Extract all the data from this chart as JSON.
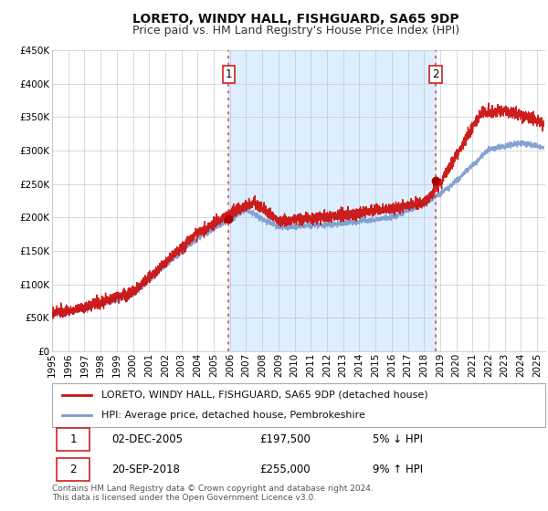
{
  "title": "LORETO, WINDY HALL, FISHGUARD, SA65 9DP",
  "subtitle": "Price paid vs. HM Land Registry's House Price Index (HPI)",
  "ylim": [
    0,
    450000
  ],
  "yticks": [
    0,
    50000,
    100000,
    150000,
    200000,
    250000,
    300000,
    350000,
    400000,
    450000
  ],
  "ytick_labels": [
    "£0",
    "£50K",
    "£100K",
    "£150K",
    "£200K",
    "£250K",
    "£300K",
    "£350K",
    "£400K",
    "£450K"
  ],
  "xlim_start": 1995.0,
  "xlim_end": 2025.5,
  "xticks": [
    1995,
    1996,
    1997,
    1998,
    1999,
    2000,
    2001,
    2002,
    2003,
    2004,
    2005,
    2006,
    2007,
    2008,
    2009,
    2010,
    2011,
    2012,
    2013,
    2014,
    2015,
    2016,
    2017,
    2018,
    2019,
    2020,
    2021,
    2022,
    2023,
    2024,
    2025
  ],
  "sale1_x": 2005.92,
  "sale1_y": 197500,
  "sale1_label": "1",
  "sale1_date": "02-DEC-2005",
  "sale1_price": "£197,500",
  "sale1_hpi": "5% ↓ HPI",
  "sale2_x": 2018.72,
  "sale2_y": 255000,
  "sale2_label": "2",
  "sale2_date": "20-SEP-2018",
  "sale2_price": "£255,000",
  "sale2_hpi": "9% ↑ HPI",
  "vline_color": "#d04040",
  "sale_dot_color": "#aa0000",
  "hpi_color": "#7799cc",
  "price_color": "#cc1111",
  "shade_color": "#ddeeff",
  "legend_label_price": "LORETO, WINDY HALL, FISHGUARD, SA65 9DP (detached house)",
  "legend_label_hpi": "HPI: Average price, detached house, Pembrokeshire",
  "footer": "Contains HM Land Registry data © Crown copyright and database right 2024.\nThis data is licensed under the Open Government Licence v3.0.",
  "title_fontsize": 10,
  "subtitle_fontsize": 9,
  "tick_fontsize": 7.5,
  "legend_fontsize": 8,
  "table_fontsize": 8.5,
  "footer_fontsize": 6.5
}
